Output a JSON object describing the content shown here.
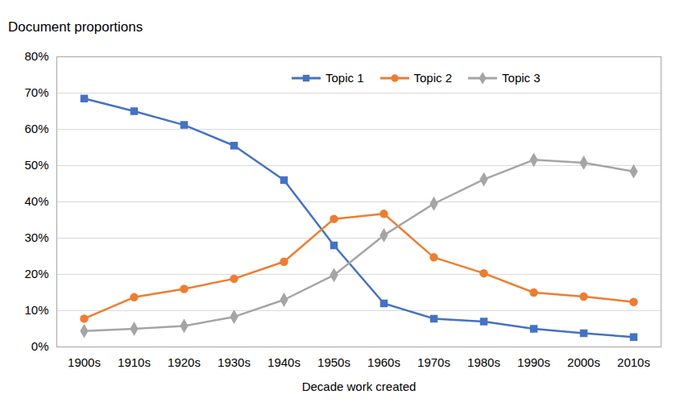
{
  "chart_data": {
    "type": "line",
    "y_label": "Document proportions",
    "x_label": "Decade work created",
    "categories": [
      "1900s",
      "1910s",
      "1920s",
      "1930s",
      "1940s",
      "1950s",
      "1960s",
      "1970s",
      "1980s",
      "1990s",
      "2000s",
      "2010s"
    ],
    "series": [
      {
        "name": "Topic 1",
        "color": "#4472c4",
        "marker": "square",
        "values": [
          68.5,
          65,
          61.2,
          55.5,
          46,
          28,
          12,
          7.8,
          7,
          5,
          3.8,
          2.7
        ]
      },
      {
        "name": "Topic 2",
        "color": "#ed7d31",
        "marker": "circle",
        "values": [
          7.8,
          13.7,
          16,
          18.8,
          23.5,
          35.3,
          36.7,
          24.7,
          20.3,
          15,
          13.9,
          12.4
        ]
      },
      {
        "name": "Topic 3",
        "color": "#a5a5a5",
        "marker": "diamond",
        "values": [
          4.4,
          5,
          5.8,
          8.3,
          13,
          19.8,
          30.8,
          39.5,
          46.2,
          51.6,
          50.8,
          48.4
        ]
      }
    ],
    "ylim": [
      0,
      80
    ],
    "yticks": [
      {
        "value": 0,
        "label": "0%"
      },
      {
        "value": 10,
        "label": "10%"
      },
      {
        "value": 20,
        "label": "20%"
      },
      {
        "value": 30,
        "label": "30%"
      },
      {
        "value": 40,
        "label": "40%"
      },
      {
        "value": 50,
        "label": "50%"
      },
      {
        "value": 60,
        "label": "60%"
      },
      {
        "value": 70,
        "label": "70%"
      },
      {
        "value": 80,
        "label": "80%"
      }
    ],
    "grid": true,
    "legend": "top"
  }
}
